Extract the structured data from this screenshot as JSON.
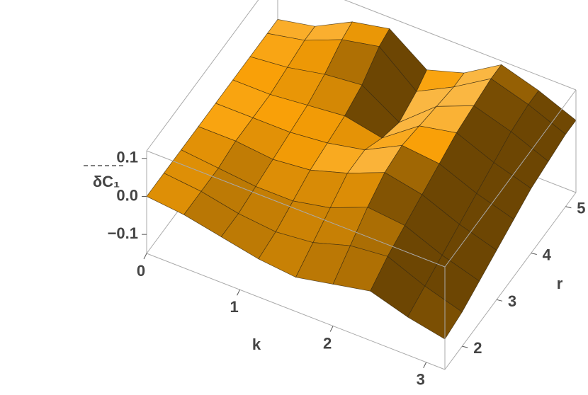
{
  "chart_data": {
    "type": "surface",
    "x_label": "k",
    "y_label": "r",
    "z_label": "δC₁",
    "x": [
      0,
      0.4,
      0.8,
      1.2,
      1.6,
      2.0,
      2.4,
      2.8,
      3.2
    ],
    "y": [
      1.5,
      2,
      2.5,
      3,
      3.5,
      4,
      4.5,
      5,
      5.3
    ],
    "z": [
      [
        0,
        -0.01,
        -0.03,
        -0.05,
        -0.06,
        -0.04,
        -0.02,
        -0.05,
        -0.07
      ],
      [
        0,
        -0.01,
        -0.03,
        -0.04,
        -0.03,
        0.0,
        0.01,
        -0.03,
        -0.06
      ],
      [
        0,
        -0.01,
        -0.02,
        -0.02,
        0.0,
        0.04,
        0.03,
        -0.01,
        -0.04
      ],
      [
        0,
        0,
        -0.01,
        0.0,
        0.03,
        0.07,
        0.05,
        0.01,
        -0.02
      ],
      [
        0,
        0,
        0.0,
        0.01,
        0.03,
        0.08,
        0.07,
        0.03,
        0.0
      ],
      [
        0,
        0,
        0.01,
        0.02,
        0.0,
        0.07,
        0.09,
        0.05,
        0.02
      ],
      [
        0,
        0.01,
        0.03,
        0.04,
        -0.02,
        0.06,
        0.1,
        0.07,
        0.03
      ],
      [
        0,
        0.02,
        0.06,
        0.08,
        0.0,
        0.05,
        0.11,
        0.08,
        0.04
      ],
      [
        0,
        0.02,
        0.07,
        0.09,
        0.02,
        0.05,
        0.11,
        0.08,
        0.04
      ]
    ],
    "xlim": [
      0,
      3.2
    ],
    "ylim": [
      1.5,
      5.3
    ],
    "zlim": [
      -0.15,
      0.12
    ],
    "xticks": [
      0,
      1,
      2,
      3
    ],
    "yticks": [
      2,
      3,
      4,
      5
    ],
    "zticks": [
      {
        "value": -0.1,
        "label": "−0.1"
      },
      {
        "value": 0,
        "label": "0.0"
      },
      0.1
    ],
    "color": "#f5a623",
    "mesh_color": "#3a2a10"
  }
}
